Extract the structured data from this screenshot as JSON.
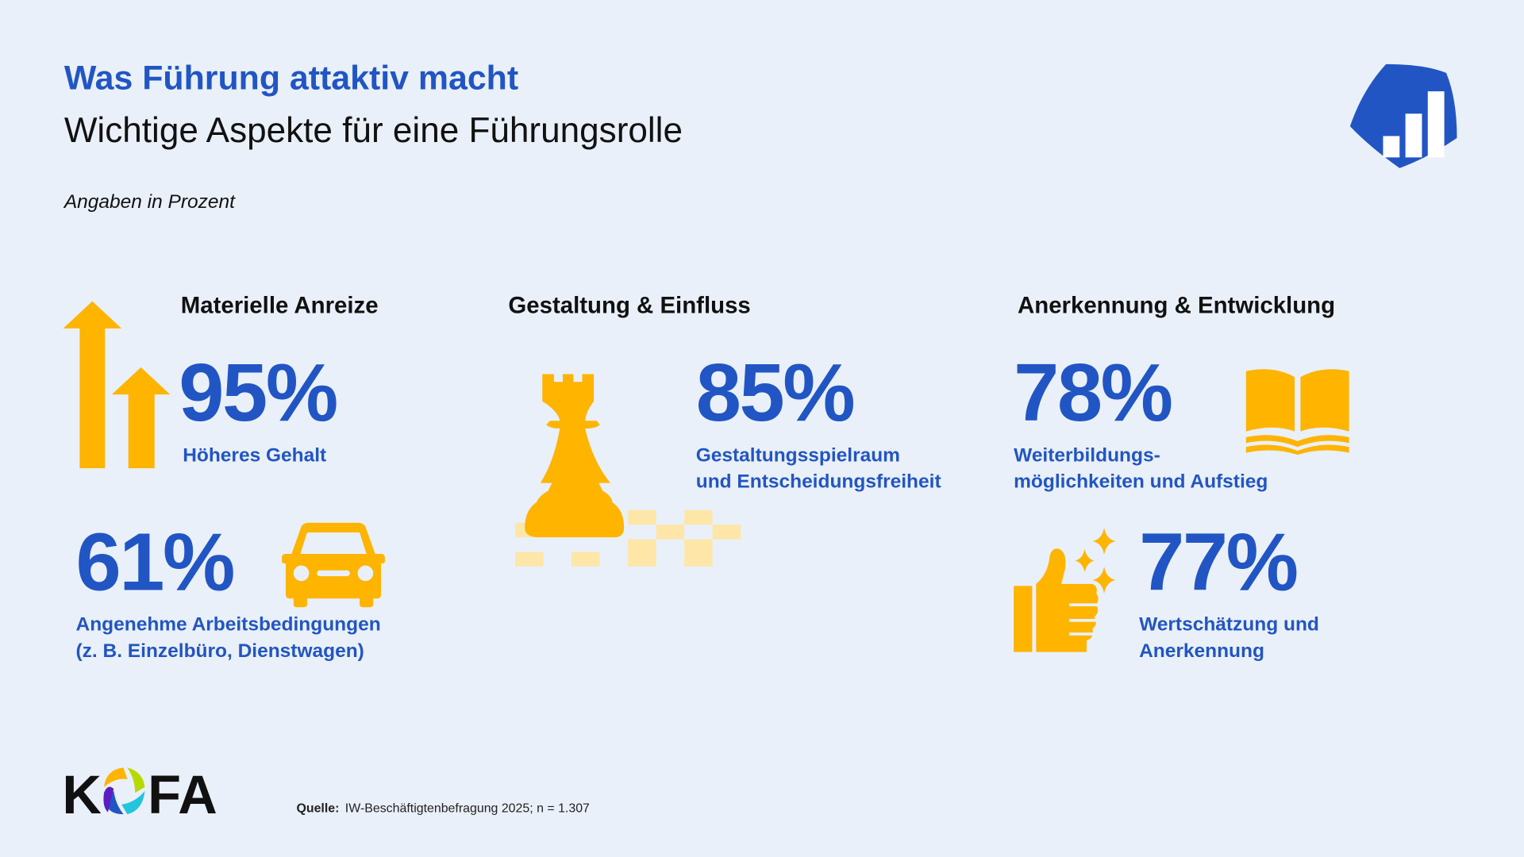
{
  "header": {
    "title": "Was Führung attaktiv macht",
    "subtitle": "Wichtige Aspekte für eine Führungsrolle",
    "unit_note": "Angaben in Prozent"
  },
  "colors": {
    "background": "#e9f0fa",
    "accent_blue": "#2255c4",
    "accent_yellow": "#ffb400"
  },
  "categories": [
    {
      "title": "Materielle Anreize",
      "items": [
        {
          "value": "95%",
          "label_lines": [
            "Höheres Gehalt"
          ],
          "icon": "arrows-up-icon"
        },
        {
          "value": "61%",
          "label_lines": [
            "Angenehme Arbeitsbedingungen",
            "(z. B. Einzelbüro, Dienstwagen)"
          ],
          "icon": "car-icon"
        }
      ]
    },
    {
      "title": "Gestaltung & Einfluss",
      "items": [
        {
          "value": "85%",
          "label_lines": [
            "Gestaltungsspielraum",
            "und Entscheidungsfreiheit"
          ],
          "icon": "chess-rook-icon"
        }
      ]
    },
    {
      "title": "Anerkennung & Entwicklung",
      "items": [
        {
          "value": "78%",
          "label_lines": [
            "Weiterbildungs-",
            "möglichkeiten und Aufstieg"
          ],
          "icon": "open-book-icon"
        },
        {
          "value": "77%",
          "label_lines": [
            "Wertschätzung und",
            "Anerkennung"
          ],
          "icon": "thumbs-up-sparkle-icon"
        }
      ]
    }
  ],
  "footer": {
    "logo": "KOFA",
    "source_label": "Quelle:",
    "source_text": "IW-Beschäftigtenbefragung 2025; n = 1.307"
  }
}
